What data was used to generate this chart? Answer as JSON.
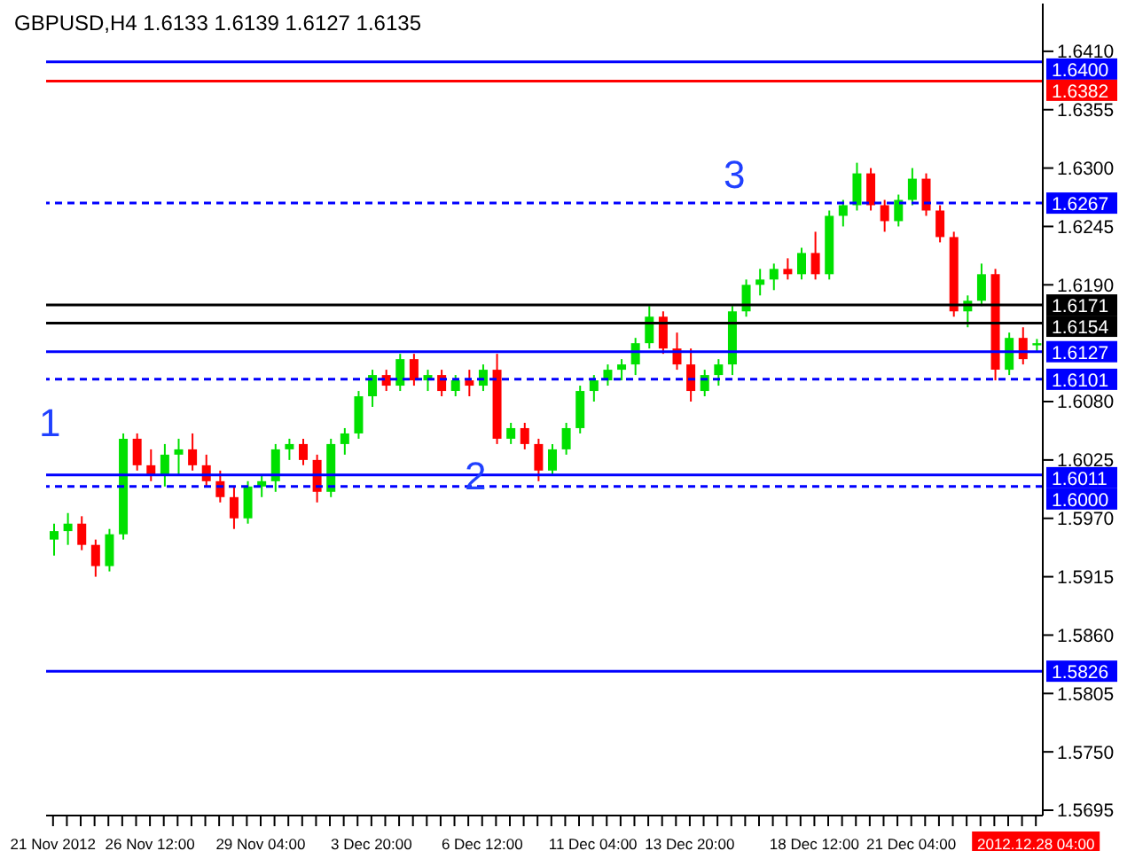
{
  "chart_data": {
    "type": "candlestick",
    "title": "GBPUSD,H4  1.6133 1.6139 1.6127 1.6135",
    "categories": [
      "21 Nov 2012",
      null,
      null,
      null,
      null,
      null,
      null,
      "26 Nov 12:00",
      null,
      null,
      null,
      null,
      null,
      null,
      null,
      "29 Nov 04:00",
      null,
      null,
      null,
      null,
      null,
      null,
      null,
      "3 Dec 20:00",
      null,
      null,
      null,
      null,
      null,
      null,
      null,
      "6 Dec 12:00",
      null,
      null,
      null,
      null,
      null,
      null,
      null,
      "11 Dec 04:00",
      null,
      null,
      null,
      null,
      null,
      null,
      "13 Dec 20:00",
      null,
      null,
      null,
      null,
      null,
      null,
      null,
      null,
      "18 Dec 12:00",
      null,
      null,
      null,
      null,
      null,
      null,
      "21 Dec 04:00",
      null,
      null,
      null,
      null,
      null,
      null,
      null,
      null,
      "2012.12.28 04:00"
    ],
    "ohlc": [
      [
        1.595,
        1.5965,
        1.5935,
        1.5958
      ],
      [
        1.5958,
        1.5975,
        1.5945,
        1.5965
      ],
      [
        1.5965,
        1.5972,
        1.594,
        1.5945
      ],
      [
        1.5945,
        1.595,
        1.5915,
        1.5925
      ],
      [
        1.5925,
        1.596,
        1.592,
        1.5955
      ],
      [
        1.5955,
        1.605,
        1.595,
        1.6045
      ],
      [
        1.6045,
        1.605,
        1.6015,
        1.602
      ],
      [
        1.602,
        1.6035,
        1.6005,
        1.601
      ],
      [
        1.601,
        1.604,
        1.6,
        1.603
      ],
      [
        1.603,
        1.6045,
        1.601,
        1.6035
      ],
      [
        1.6035,
        1.605,
        1.6015,
        1.602
      ],
      [
        1.602,
        1.603,
        1.6,
        1.6005
      ],
      [
        1.6005,
        1.6015,
        1.5985,
        1.599
      ],
      [
        1.599,
        1.6,
        1.596,
        1.597
      ],
      [
        1.597,
        1.6005,
        1.5965,
        1.6
      ],
      [
        1.6,
        1.601,
        1.599,
        1.6005
      ],
      [
        1.6005,
        1.604,
        1.5995,
        1.6035
      ],
      [
        1.6035,
        1.6045,
        1.6025,
        1.604
      ],
      [
        1.604,
        1.6045,
        1.602,
        1.6025
      ],
      [
        1.6025,
        1.603,
        1.5985,
        1.5995
      ],
      [
        1.5995,
        1.6045,
        1.599,
        1.604
      ],
      [
        1.604,
        1.6055,
        1.603,
        1.605
      ],
      [
        1.605,
        1.609,
        1.6045,
        1.6085
      ],
      [
        1.6085,
        1.611,
        1.6075,
        1.6105
      ],
      [
        1.6105,
        1.611,
        1.609,
        1.6095
      ],
      [
        1.6095,
        1.6125,
        1.609,
        1.612
      ],
      [
        1.612,
        1.6125,
        1.6095,
        1.61
      ],
      [
        1.61,
        1.611,
        1.609,
        1.6105
      ],
      [
        1.6105,
        1.611,
        1.6085,
        1.609
      ],
      [
        1.609,
        1.6105,
        1.6085,
        1.61
      ],
      [
        1.61,
        1.611,
        1.6085,
        1.6095
      ],
      [
        1.6095,
        1.6115,
        1.609,
        1.611
      ],
      [
        1.611,
        1.6125,
        1.604,
        1.6045
      ],
      [
        1.6045,
        1.606,
        1.604,
        1.6055
      ],
      [
        1.6055,
        1.606,
        1.6035,
        1.604
      ],
      [
        1.604,
        1.6045,
        1.6005,
        1.6015
      ],
      [
        1.6015,
        1.604,
        1.601,
        1.6035
      ],
      [
        1.6035,
        1.606,
        1.603,
        1.6055
      ],
      [
        1.6055,
        1.6095,
        1.605,
        1.609
      ],
      [
        1.609,
        1.6105,
        1.608,
        1.61
      ],
      [
        1.61,
        1.6115,
        1.6095,
        1.611
      ],
      [
        1.611,
        1.612,
        1.61,
        1.6115
      ],
      [
        1.6115,
        1.614,
        1.6105,
        1.6135
      ],
      [
        1.6135,
        1.617,
        1.613,
        1.616
      ],
      [
        1.616,
        1.6165,
        1.6125,
        1.613
      ],
      [
        1.613,
        1.6145,
        1.611,
        1.6115
      ],
      [
        1.6115,
        1.613,
        1.608,
        1.609
      ],
      [
        1.609,
        1.611,
        1.6085,
        1.6105
      ],
      [
        1.6105,
        1.612,
        1.6095,
        1.6115
      ],
      [
        1.6115,
        1.617,
        1.6105,
        1.6165
      ],
      [
        1.6165,
        1.6195,
        1.616,
        1.619
      ],
      [
        1.619,
        1.6205,
        1.618,
        1.6195
      ],
      [
        1.6195,
        1.621,
        1.6185,
        1.6205
      ],
      [
        1.6205,
        1.6215,
        1.6195,
        1.62
      ],
      [
        1.62,
        1.6225,
        1.6195,
        1.622
      ],
      [
        1.622,
        1.624,
        1.6195,
        1.62
      ],
      [
        1.62,
        1.626,
        1.6195,
        1.6255
      ],
      [
        1.6255,
        1.627,
        1.6245,
        1.6265
      ],
      [
        1.6265,
        1.6305,
        1.626,
        1.6295
      ],
      [
        1.6295,
        1.63,
        1.626,
        1.6265
      ],
      [
        1.6265,
        1.627,
        1.624,
        1.625
      ],
      [
        1.625,
        1.6275,
        1.6245,
        1.627
      ],
      [
        1.627,
        1.63,
        1.6265,
        1.629
      ],
      [
        1.629,
        1.6295,
        1.6255,
        1.626
      ],
      [
        1.626,
        1.6265,
        1.623,
        1.6235
      ],
      [
        1.6235,
        1.624,
        1.616,
        1.6165
      ],
      [
        1.6165,
        1.618,
        1.615,
        1.6175
      ],
      [
        1.6175,
        1.621,
        1.617,
        1.62
      ],
      [
        1.62,
        1.6205,
        1.61,
        1.611
      ],
      [
        1.611,
        1.6145,
        1.6105,
        1.614
      ],
      [
        1.614,
        1.615,
        1.6115,
        1.612
      ],
      [
        1.6133,
        1.6139,
        1.6127,
        1.6135
      ]
    ],
    "colors": [
      "#00e000",
      "#00e000",
      "#ff0000",
      "#ff0000",
      "#00e000",
      "#00e000",
      "#ff0000",
      "#ff0000",
      "#00e000",
      "#00e000",
      "#ff0000",
      "#ff0000",
      "#ff0000",
      "#ff0000",
      "#00e000",
      "#00e000",
      "#00e000",
      "#00e000",
      "#ff0000",
      "#ff0000",
      "#00e000",
      "#00e000",
      "#00e000",
      "#00e000",
      "#ff0000",
      "#00e000",
      "#ff0000",
      "#00e000",
      "#ff0000",
      "#00e000",
      "#ff0000",
      "#00e000",
      "#ff0000",
      "#00e000",
      "#ff0000",
      "#ff0000",
      "#00e000",
      "#00e000",
      "#00e000",
      "#00e000",
      "#00e000",
      "#00e000",
      "#00e000",
      "#00e000",
      "#ff0000",
      "#ff0000",
      "#ff0000",
      "#00e000",
      "#00e000",
      "#00e000",
      "#00e000",
      "#00e000",
      "#00e000",
      "#ff0000",
      "#00e000",
      "#ff0000",
      "#00e000",
      "#00e000",
      "#00e000",
      "#ff0000",
      "#ff0000",
      "#00e000",
      "#00e000",
      "#ff0000",
      "#ff0000",
      "#ff0000",
      "#00e000",
      "#00e000",
      "#ff0000",
      "#00e000",
      "#ff0000",
      "#00e000"
    ],
    "ylim": [
      1.569,
      1.6455
    ],
    "yticks": [
      {
        "value": 1.641,
        "label": "1.6410"
      },
      {
        "value": 1.6355,
        "label": "1.6355"
      },
      {
        "value": 1.63,
        "label": "1.6300"
      },
      {
        "value": 1.6245,
        "label": "1.6245"
      },
      {
        "value": 1.619,
        "label": "1.6190"
      },
      {
        "value": 1.608,
        "label": "1.6080"
      },
      {
        "value": 1.6025,
        "label": "1.6025"
      },
      {
        "value": 1.597,
        "label": "1.5970"
      },
      {
        "value": 1.5915,
        "label": "1.5915"
      },
      {
        "value": 1.586,
        "label": "1.5860"
      },
      {
        "value": 1.5805,
        "label": "1.5805"
      },
      {
        "value": 1.575,
        "label": "1.5750"
      },
      {
        "value": 1.5695,
        "label": "1.5695"
      }
    ],
    "ref_lines": [
      {
        "axis": "y",
        "value": 1.64,
        "label": "1.6400",
        "color": "#0000ff"
      },
      {
        "axis": "y",
        "value": 1.6382,
        "label": "1.6382",
        "color": "#ff0000"
      },
      {
        "axis": "y",
        "value": 1.6267,
        "label": "1.6267",
        "color": "#0000ff",
        "line_style": "dashed"
      },
      {
        "axis": "y",
        "value": 1.6171,
        "label": "1.6171",
        "color": "#000000"
      },
      {
        "axis": "y",
        "value": 1.6154,
        "label": "1.6154",
        "color": "#000000"
      },
      {
        "axis": "y",
        "value": 1.6127,
        "label": "1.6127",
        "color": "#0000ff"
      },
      {
        "axis": "y",
        "value": 1.6101,
        "label": "1.6101",
        "color": "#0000ff",
        "line_style": "dashed"
      },
      {
        "axis": "y",
        "value": 1.6011,
        "label": "1.6011",
        "color": "#0000ff"
      },
      {
        "axis": "y",
        "value": 1.6,
        "label": "1.6000",
        "color": "#0000ff",
        "line_style": "dashed"
      },
      {
        "axis": "y",
        "value": 1.5826,
        "label": "1.5826",
        "color": "#0000ff"
      }
    ],
    "annotations": [
      "1",
      "2",
      "3"
    ]
  }
}
